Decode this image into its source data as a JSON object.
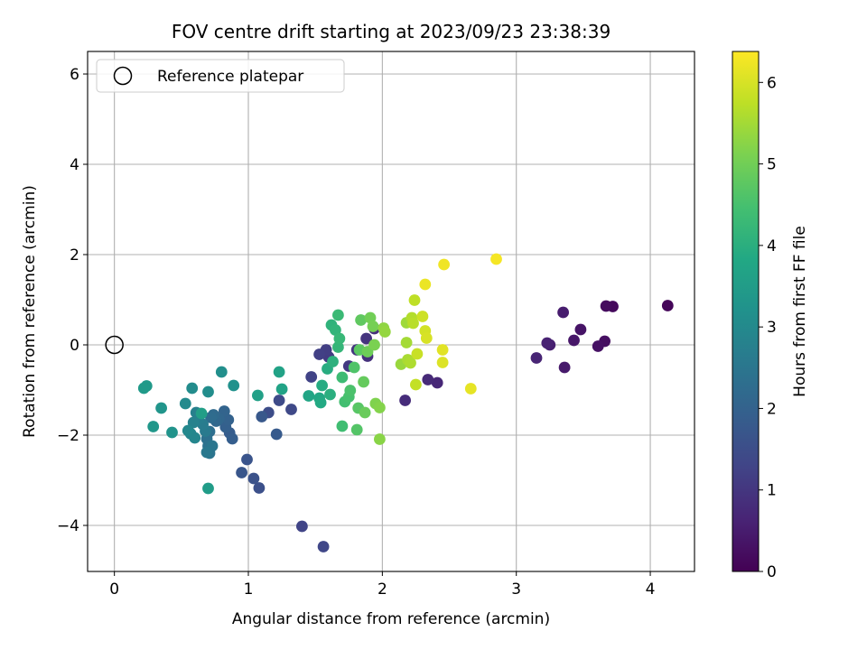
{
  "chart_data": {
    "type": "scatter",
    "title": "FOV centre drift starting at 2023/09/23 23:38:39",
    "xlabel": "Angular distance from reference (arcmin)",
    "ylabel": "Rotation from reference (arcmin)",
    "colorbar_label": "Hours from first FF file",
    "colormap": "viridis",
    "xlim": [
      -0.2,
      4.33
    ],
    "ylim": [
      -5.02,
      6.5
    ],
    "x_ticks": [
      0,
      1,
      2,
      3,
      4
    ],
    "y_ticks": [
      -4,
      -2,
      0,
      2,
      4,
      6
    ],
    "colorbar_ticks": [
      0,
      1,
      2,
      3,
      4,
      5,
      6
    ],
    "colorbar_range": [
      0,
      6.38
    ],
    "grid": true,
    "legend": {
      "placement": "top-left",
      "entries": [
        "Reference platepar"
      ]
    },
    "reference_point": {
      "x": 0,
      "y": 0
    },
    "series": [
      {
        "points": [
          [
            4.13,
            0.87,
            0.1
          ],
          [
            3.72,
            0.85,
            0.15
          ],
          [
            3.67,
            0.86,
            0.2
          ],
          [
            3.66,
            0.08,
            0.25
          ],
          [
            3.61,
            -0.03,
            0.3
          ],
          [
            3.48,
            0.34,
            0.35
          ],
          [
            3.43,
            0.1,
            0.4
          ],
          [
            3.36,
            -0.5,
            0.45
          ],
          [
            3.35,
            0.72,
            0.5
          ],
          [
            3.25,
            0.0,
            0.55
          ],
          [
            3.23,
            0.04,
            0.6
          ],
          [
            3.15,
            -0.29,
            0.65
          ],
          [
            2.41,
            -0.84,
            0.7
          ],
          [
            2.34,
            -0.77,
            0.75
          ],
          [
            2.17,
            -1.23,
            0.8
          ],
          [
            1.94,
            0.36,
            0.85
          ],
          [
            1.89,
            -0.25,
            0.9
          ],
          [
            1.88,
            0.14,
            0.95
          ],
          [
            1.81,
            -0.11,
            1.0
          ],
          [
            1.75,
            -0.47,
            1.05
          ],
          [
            1.6,
            -0.27,
            1.1
          ],
          [
            1.58,
            -0.11,
            1.15
          ],
          [
            1.53,
            -0.21,
            1.2
          ],
          [
            1.47,
            -0.71,
            1.25
          ],
          [
            1.4,
            -4.02,
            1.3
          ],
          [
            1.56,
            -4.47,
            1.35
          ],
          [
            1.32,
            -1.43,
            1.4
          ],
          [
            1.23,
            -1.23,
            1.45
          ],
          [
            1.15,
            -1.5,
            1.5
          ],
          [
            1.08,
            -3.17,
            1.55
          ],
          [
            1.04,
            -2.96,
            1.6
          ],
          [
            0.99,
            -2.54,
            1.65
          ],
          [
            0.95,
            -2.83,
            1.7
          ],
          [
            1.1,
            -1.59,
            1.75
          ],
          [
            1.21,
            -1.98,
            1.8
          ],
          [
            0.86,
            -1.95,
            1.85
          ],
          [
            0.88,
            -2.08,
            1.9
          ],
          [
            0.83,
            -1.82,
            1.95
          ],
          [
            0.85,
            -1.66,
            2.0
          ],
          [
            0.82,
            -1.47,
            2.05
          ],
          [
            0.78,
            -1.64,
            2.1
          ],
          [
            0.76,
            -1.69,
            2.15
          ],
          [
            0.74,
            -1.55,
            2.2
          ],
          [
            0.72,
            -1.61,
            2.25
          ],
          [
            0.71,
            -1.92,
            2.3
          ],
          [
            0.69,
            -2.08,
            2.35
          ],
          [
            0.7,
            -2.24,
            2.4
          ],
          [
            0.71,
            -2.4,
            2.45
          ],
          [
            0.73,
            -2.24,
            2.5
          ],
          [
            0.69,
            -2.38,
            2.55
          ],
          [
            0.68,
            -1.91,
            2.6
          ],
          [
            0.66,
            -1.76,
            2.65
          ],
          [
            0.63,
            -1.64,
            2.7
          ],
          [
            0.61,
            -1.5,
            2.75
          ],
          [
            0.59,
            -1.72,
            2.8
          ],
          [
            0.57,
            -1.97,
            2.85
          ],
          [
            0.6,
            -2.06,
            2.9
          ],
          [
            0.55,
            -1.9,
            2.95
          ],
          [
            0.53,
            -1.3,
            3.0
          ],
          [
            0.58,
            -0.96,
            3.05
          ],
          [
            0.7,
            -1.04,
            3.1
          ],
          [
            0.8,
            -0.6,
            3.15
          ],
          [
            0.89,
            -0.9,
            3.2
          ],
          [
            0.43,
            -1.94,
            3.25
          ],
          [
            0.35,
            -1.4,
            3.3
          ],
          [
            0.29,
            -1.81,
            3.35
          ],
          [
            0.24,
            -0.91,
            3.4
          ],
          [
            0.22,
            -0.96,
            3.45
          ],
          [
            0.7,
            -3.18,
            3.5
          ],
          [
            0.65,
            -1.52,
            3.55
          ],
          [
            1.07,
            -1.12,
            3.6
          ],
          [
            1.23,
            -0.6,
            3.65
          ],
          [
            1.25,
            -0.98,
            3.7
          ],
          [
            1.45,
            -1.13,
            3.75
          ],
          [
            1.53,
            -1.18,
            3.8
          ],
          [
            1.54,
            -1.28,
            3.85
          ],
          [
            1.55,
            -0.9,
            3.9
          ],
          [
            1.59,
            -0.53,
            3.95
          ],
          [
            1.61,
            -1.1,
            4.0
          ],
          [
            1.63,
            -0.37,
            4.05
          ],
          [
            1.62,
            0.44,
            4.1
          ],
          [
            1.65,
            0.33,
            4.15
          ],
          [
            1.67,
            -0.05,
            4.2
          ],
          [
            1.68,
            0.14,
            4.25
          ],
          [
            1.67,
            0.66,
            4.3
          ],
          [
            1.7,
            -0.72,
            4.35
          ],
          [
            1.7,
            -1.8,
            4.4
          ],
          [
            1.72,
            -1.26,
            4.45
          ],
          [
            1.75,
            -1.15,
            4.5
          ],
          [
            1.76,
            -1.01,
            4.55
          ],
          [
            1.79,
            -0.5,
            4.6
          ],
          [
            1.81,
            -1.88,
            4.65
          ],
          [
            1.82,
            -1.4,
            4.7
          ],
          [
            1.83,
            -0.11,
            4.75
          ],
          [
            1.84,
            0.55,
            4.8
          ],
          [
            1.86,
            -0.82,
            4.85
          ],
          [
            1.87,
            -1.5,
            4.9
          ],
          [
            1.89,
            -0.15,
            4.95
          ],
          [
            1.91,
            0.6,
            5.0
          ],
          [
            1.93,
            0.41,
            5.05
          ],
          [
            1.94,
            0.0,
            5.1
          ],
          [
            1.95,
            -1.3,
            5.15
          ],
          [
            1.98,
            -1.39,
            5.2
          ],
          [
            1.98,
            -2.09,
            5.25
          ],
          [
            2.01,
            0.37,
            5.3
          ],
          [
            2.02,
            0.29,
            5.35
          ],
          [
            2.14,
            -0.43,
            5.4
          ],
          [
            2.18,
            0.49,
            5.45
          ],
          [
            2.18,
            0.05,
            5.5
          ],
          [
            2.19,
            -0.33,
            5.55
          ],
          [
            2.21,
            -0.4,
            5.6
          ],
          [
            2.22,
            0.6,
            5.65
          ],
          [
            2.23,
            0.48,
            5.7
          ],
          [
            2.24,
            0.99,
            5.75
          ],
          [
            2.25,
            -0.88,
            5.8
          ],
          [
            2.26,
            -0.2,
            5.85
          ],
          [
            2.3,
            0.63,
            5.9
          ],
          [
            2.32,
            0.31,
            5.95
          ],
          [
            2.33,
            0.15,
            6.0
          ],
          [
            2.45,
            -0.39,
            6.05
          ],
          [
            2.45,
            -0.11,
            6.1
          ],
          [
            2.66,
            -0.97,
            6.15
          ],
          [
            2.32,
            1.34,
            6.2
          ],
          [
            2.46,
            1.78,
            6.25
          ],
          [
            2.85,
            1.9,
            6.3
          ]
        ]
      }
    ]
  }
}
